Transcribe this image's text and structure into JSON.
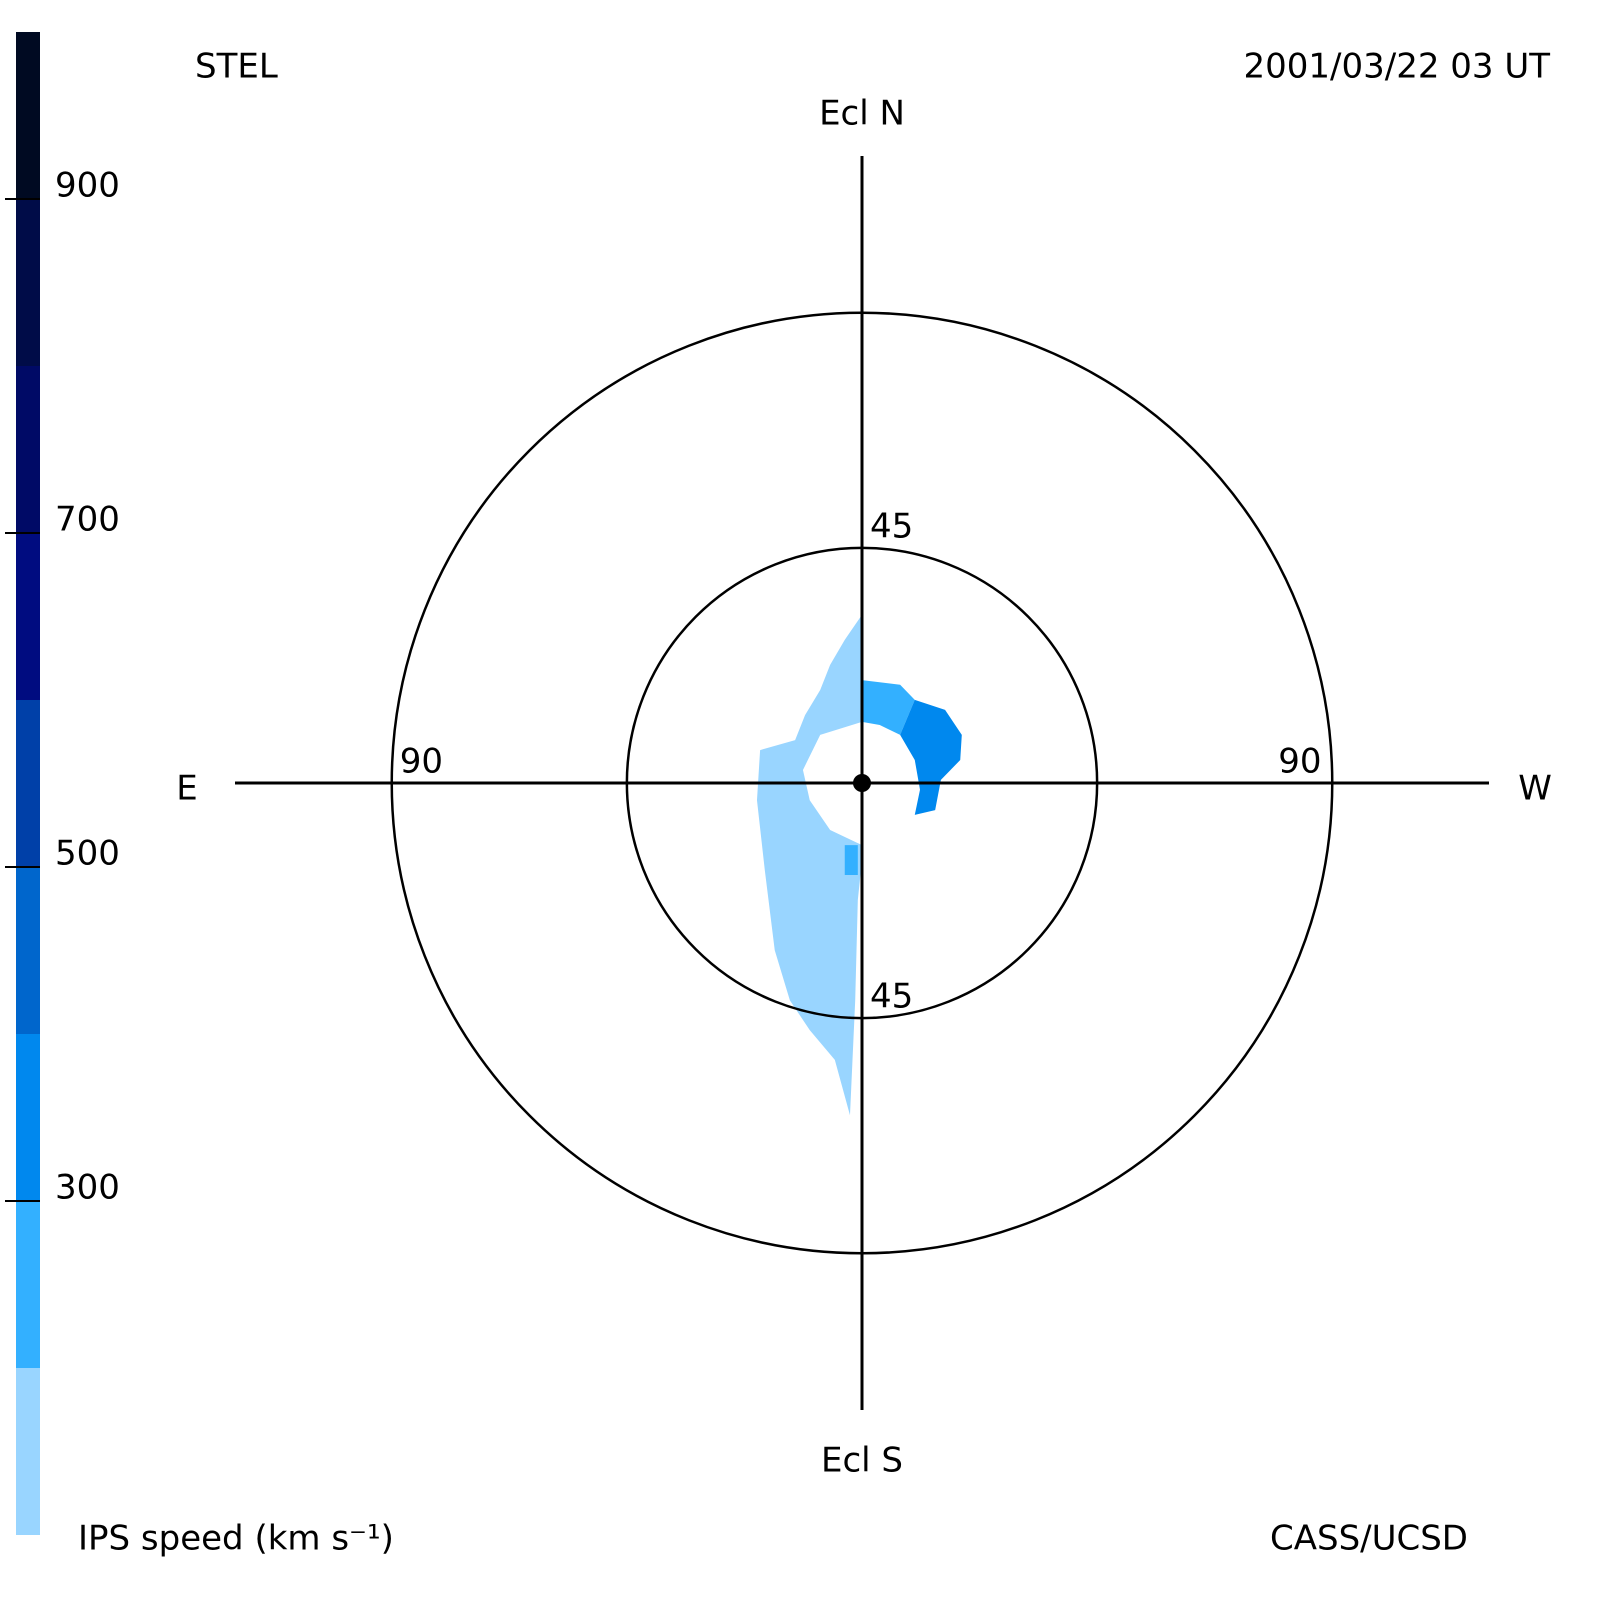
{
  "chart_data": {
    "type": "polar-map",
    "title_left": "STEL",
    "title_right": "2001/03/22 03 UT",
    "credit": "CASS/UCSD",
    "direction_labels": {
      "north": "Ecl N",
      "south": "Ecl S",
      "east": "E",
      "west": "W"
    },
    "rlim": [
      0,
      120
    ],
    "rings": [
      45,
      90
    ],
    "colorbar": {
      "label": "IPS speed (km s⁻¹)",
      "lim": [
        100,
        1000
      ],
      "ticks": [
        300,
        500,
        700,
        900
      ],
      "bands": [
        {
          "from": 100,
          "to": 200,
          "color": "#99d5ff"
        },
        {
          "from": 200,
          "to": 300,
          "color": "#33b0ff"
        },
        {
          "from": 300,
          "to": 400,
          "color": "#0088ee"
        },
        {
          "from": 400,
          "to": 500,
          "color": "#0066cc"
        },
        {
          "from": 500,
          "to": 600,
          "color": "#0040a8"
        },
        {
          "from": 600,
          "to": 700,
          "color": "#000c80"
        },
        {
          "from": 700,
          "to": 800,
          "color": "#000a66"
        },
        {
          "from": 800,
          "to": 900,
          "color": "#000c48"
        },
        {
          "from": 900,
          "to": 1000,
          "color": "#000a22"
        }
      ]
    },
    "regions": [
      {
        "speed": 150,
        "points": [
          [
            0,
            32.2
          ],
          [
            -3.3,
            27.4
          ],
          [
            -6.1,
            22.6
          ],
          [
            -8.0,
            17.8
          ],
          [
            -10.9,
            13.0
          ],
          [
            -12.8,
            8.2
          ],
          [
            -19.5,
            6.3
          ],
          [
            -20.1,
            -3.3
          ],
          [
            -18.6,
            -16.7
          ],
          [
            -16.7,
            -32.0
          ],
          [
            -13.8,
            -41.6
          ],
          [
            -10.0,
            -47.3
          ],
          [
            -5.2,
            -53.0
          ],
          [
            -2.3,
            -63.6
          ],
          [
            -1.3,
            -41.6
          ],
          [
            -0.8,
            -22.4
          ],
          [
            0,
            -14.7
          ],
          [
            0,
            -11.9
          ],
          [
            -6.1,
            -9.0
          ],
          [
            -10.0,
            -3.3
          ],
          [
            -11.3,
            2.5
          ],
          [
            -8.0,
            9.2
          ],
          [
            0,
            11.7
          ]
        ]
      },
      {
        "speed": 250,
        "points": [
          [
            0,
            19.7
          ],
          [
            7.3,
            18.8
          ],
          [
            10.1,
            15.9
          ],
          [
            7.3,
            9.2
          ],
          [
            3.4,
            11.1
          ],
          [
            0,
            11.7
          ]
        ]
      },
      {
        "speed": 250,
        "points": [
          [
            -3.3,
            -11.9
          ],
          [
            -0.8,
            -11.9
          ],
          [
            -0.8,
            -17.6
          ],
          [
            -3.3,
            -17.6
          ]
        ]
      },
      {
        "speed": 350,
        "points": [
          [
            10.1,
            15.9
          ],
          [
            15.9,
            14.0
          ],
          [
            19.1,
            9.2
          ],
          [
            18.8,
            4.4
          ],
          [
            15.1,
            0.6
          ],
          [
            14.0,
            -5.2
          ],
          [
            10.1,
            -6.1
          ],
          [
            11.1,
            -1.3
          ],
          [
            10.1,
            4.4
          ],
          [
            7.3,
            9.2
          ]
        ]
      }
    ]
  }
}
